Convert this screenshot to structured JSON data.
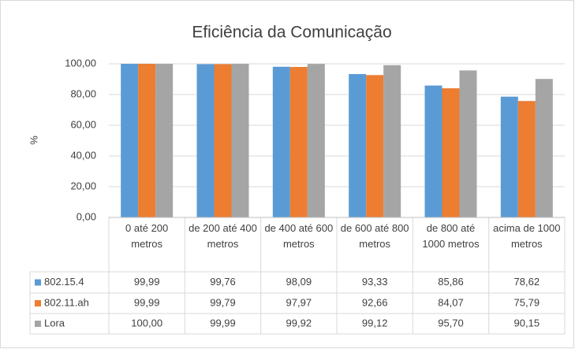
{
  "chart_data": {
    "type": "bar",
    "title": "Eficiência da Comunicação",
    "y_label": "%",
    "categories": [
      "0 até 200 metros",
      "de 200 até 400 metros",
      "de 400 até 600 metros",
      "de 600 até 800 metros",
      "de 800 até 1000 metros",
      "acima de 1000 metros"
    ],
    "series": [
      {
        "name": "802.15.4",
        "color": "#5b9bd5",
        "values": [
          99.99,
          99.76,
          98.09,
          93.33,
          85.86,
          78.62
        ],
        "value_labels": [
          "99,99",
          "99,76",
          "98,09",
          "93,33",
          "85,86",
          "78,62"
        ]
      },
      {
        "name": "802.11.ah",
        "color": "#ed7d31",
        "values": [
          99.99,
          99.79,
          97.97,
          92.66,
          84.07,
          75.79
        ],
        "value_labels": [
          "99,99",
          "99,79",
          "97,97",
          "92,66",
          "84,07",
          "75,79"
        ]
      },
      {
        "name": "Lora",
        "color": "#a5a5a5",
        "values": [
          100,
          99.99,
          99.92,
          99.12,
          95.7,
          90.15
        ],
        "value_labels": [
          "100,00",
          "99,99",
          "99,92",
          "99,12",
          "95,70",
          "90,15"
        ]
      }
    ],
    "ylim": [
      0,
      100
    ],
    "yticks": [
      {
        "value": 0,
        "label": "0,00"
      },
      {
        "value": 20,
        "label": "20,00"
      },
      {
        "value": 40,
        "label": "40,00"
      },
      {
        "value": 60,
        "label": "60,00"
      },
      {
        "value": 80,
        "label": "80,00"
      },
      {
        "value": 100,
        "label": "100,00"
      }
    ],
    "grid": true
  }
}
